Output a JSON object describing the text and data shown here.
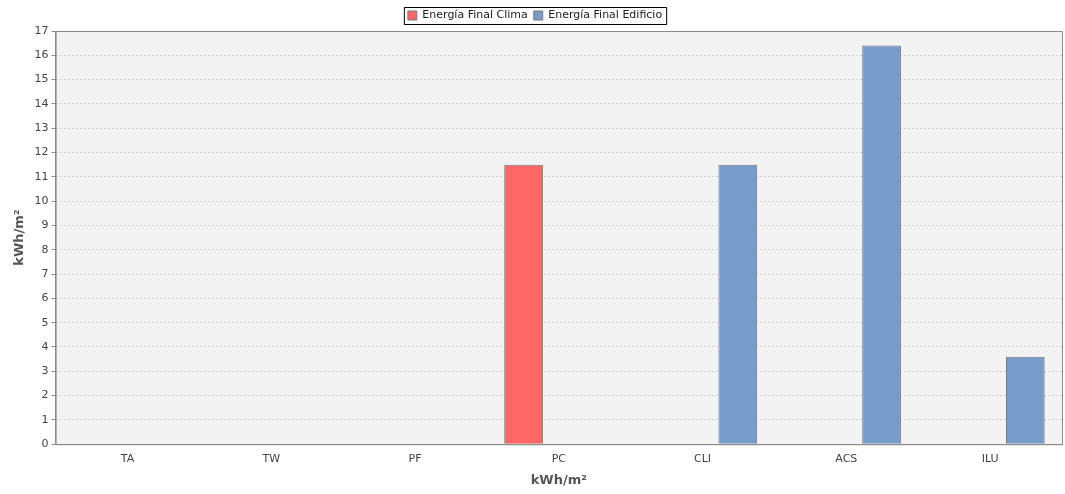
{
  "chart_data": {
    "type": "bar",
    "xlabel": "kWh/m²",
    "ylabel": "kWh/m²",
    "categories": [
      "TA",
      "TW",
      "PF",
      "PC",
      "CLI",
      "ACS",
      "ILU"
    ],
    "series": [
      {
        "name": "Energía Final Clima",
        "color": "#ff6666",
        "values": [
          0,
          0,
          0,
          11.5,
          0,
          0,
          0
        ]
      },
      {
        "name": "Energía Final Edificio",
        "color": "#779ccb",
        "values": [
          0,
          0,
          0,
          0,
          11.5,
          16.4,
          3.6
        ]
      }
    ],
    "ylim": [
      0,
      17
    ],
    "yticks": [
      0,
      1,
      2,
      3,
      4,
      5,
      6,
      7,
      8,
      9,
      10,
      11,
      12,
      13,
      14,
      15,
      16,
      17
    ],
    "grid": "y",
    "legend": "top"
  }
}
